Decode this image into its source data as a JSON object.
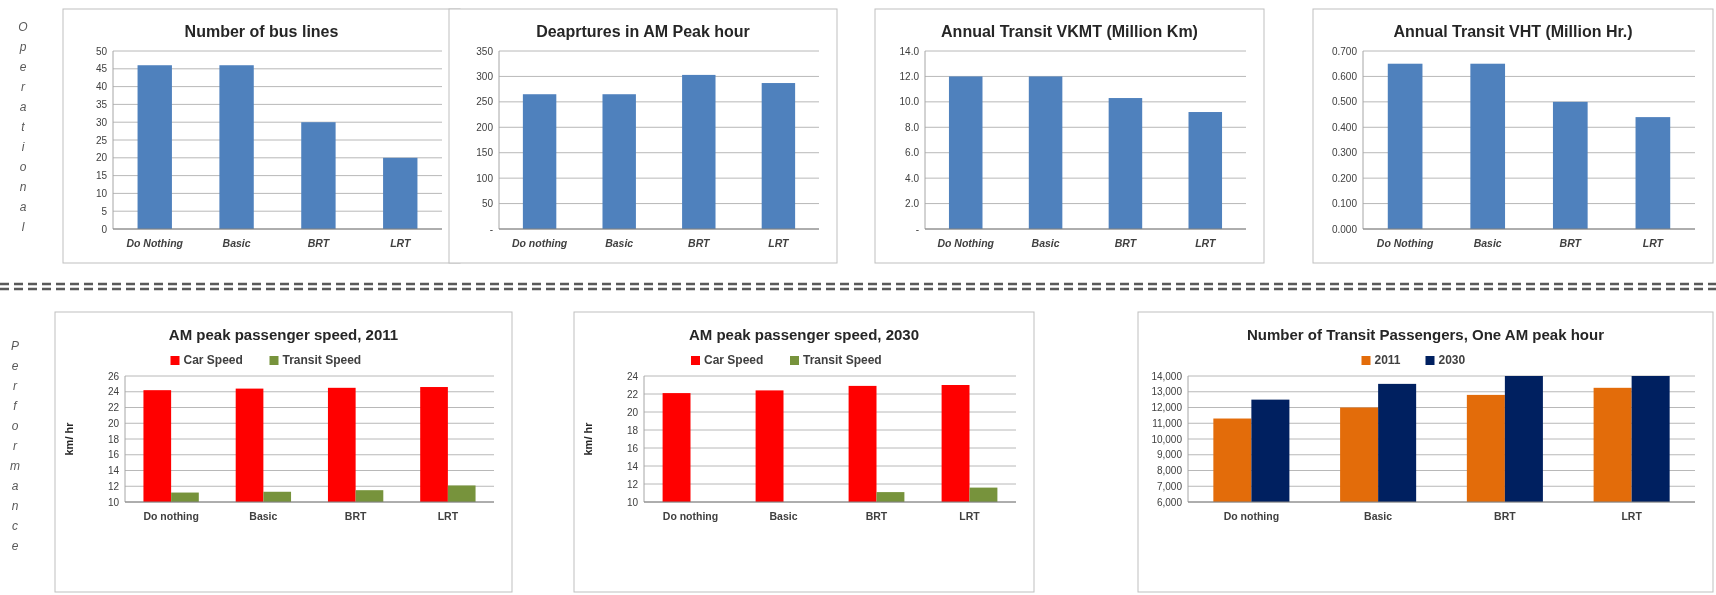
{
  "chart_data": [
    {
      "type": "bar",
      "title": "Number of bus lines",
      "categories": [
        "Do Nothing",
        "Basic",
        "BRT",
        "LRT"
      ],
      "values": [
        46,
        46,
        30,
        20
      ],
      "color": "#4f81bd",
      "ylim": [
        0,
        50
      ],
      "yticks": [
        0,
        5,
        10,
        15,
        20,
        25,
        30,
        35,
        40,
        45,
        50
      ],
      "grid": "y",
      "annotations": [
        "Operational"
      ]
    },
    {
      "type": "bar",
      "title": "Deaprtures  in AM Peak hour",
      "categories": [
        "Do nothing",
        "Basic",
        "BRT",
        "LRT"
      ],
      "values": [
        265,
        265,
        303,
        287
      ],
      "color": "#4f81bd",
      "ylim": [
        0,
        350
      ],
      "yticks": [
        {
          "value": 0,
          "label": "-"
        },
        50,
        100,
        150,
        200,
        250,
        300,
        350
      ],
      "grid": "y"
    },
    {
      "type": "bar",
      "title": "Annual Transit VKMT  (Million Km)",
      "categories": [
        "Do Nothing",
        "Basic",
        "BRT",
        "LRT"
      ],
      "values": [
        12.0,
        12.0,
        10.3,
        9.2
      ],
      "color": "#4f81bd",
      "ylim": [
        0,
        14
      ],
      "yticks": [
        {
          "value": 0,
          "label": "-"
        },
        {
          "value": 2,
          "label": "2.0"
        },
        {
          "value": 4,
          "label": "4.0"
        },
        {
          "value": 6,
          "label": "6.0"
        },
        {
          "value": 8,
          "label": "8.0"
        },
        {
          "value": 10,
          "label": "10.0"
        },
        {
          "value": 12,
          "label": "12.0"
        },
        {
          "value": 14,
          "label": "14.0"
        }
      ],
      "grid": "y"
    },
    {
      "type": "bar",
      "title": "Annual Transit VHT (Million Hr.)",
      "categories": [
        "Do Nothing",
        "Basic",
        "BRT",
        "LRT"
      ],
      "values": [
        0.65,
        0.65,
        0.5,
        0.44
      ],
      "color": "#4f81bd",
      "ylim": [
        0,
        0.7
      ],
      "yticks": [
        {
          "value": 0,
          "label": "0.000"
        },
        {
          "value": 0.1,
          "label": "0.100"
        },
        {
          "value": 0.2,
          "label": "0.200"
        },
        {
          "value": 0.3,
          "label": "0.300"
        },
        {
          "value": 0.4,
          "label": "0.400"
        },
        {
          "value": 0.5,
          "label": "0.500"
        },
        {
          "value": 0.6,
          "label": "0.600"
        },
        {
          "value": 0.7,
          "label": "0.700"
        }
      ],
      "grid": "y"
    },
    {
      "type": "bar",
      "title": "AM peak passenger speed, 2011",
      "categories": [
        "Do nothing",
        "Basic",
        "BRT",
        "LRT"
      ],
      "series": [
        {
          "name": "Car Speed",
          "color": "#ff0000",
          "values": [
            24.2,
            24.4,
            24.5,
            24.6
          ]
        },
        {
          "name": "Transit Speed",
          "color": "#77933c",
          "values": [
            11.2,
            11.3,
            11.5,
            12.1
          ]
        }
      ],
      "ylabel": "km/ hr",
      "ylim": [
        10,
        26
      ],
      "yticks": [
        10,
        12,
        14,
        16,
        18,
        20,
        22,
        24,
        26
      ],
      "grid": "y",
      "legend": "top",
      "annotations": [
        "Performance"
      ]
    },
    {
      "type": "bar",
      "title": "AM peak passenger speed, 2030",
      "categories": [
        "Do nothing",
        "Basic",
        "BRT",
        "LRT"
      ],
      "series": [
        {
          "name": "Car Speed",
          "color": "#ff0000",
          "values": [
            22.1,
            22.4,
            22.9,
            23.0
          ]
        },
        {
          "name": "Transit Speed",
          "color": "#77933c",
          "values": [
            null,
            null,
            11.1,
            11.6
          ]
        }
      ],
      "ylabel": "km/ hr",
      "ylim": [
        10,
        24
      ],
      "yticks": [
        10,
        12,
        14,
        16,
        18,
        20,
        22,
        24
      ],
      "grid": "y",
      "legend": "top"
    },
    {
      "type": "bar",
      "title": "Number of Transit  Passengers, One AM peak hour",
      "categories": [
        "Do nothing",
        "Basic",
        "BRT",
        "LRT"
      ],
      "series": [
        {
          "name": "2011",
          "color": "#e36c0a",
          "values": [
            11300,
            12000,
            12800,
            13250
          ]
        },
        {
          "name": "2030",
          "color": "#002060",
          "values": [
            12500,
            13500,
            14000,
            14000
          ]
        }
      ],
      "ylim": [
        6000,
        14000
      ],
      "yticks": [
        {
          "value": 6000,
          "label": "6,000"
        },
        {
          "value": 7000,
          "label": "7,000"
        },
        {
          "value": 8000,
          "label": "8,000"
        },
        {
          "value": 9000,
          "label": "9,000"
        },
        {
          "value": 10000,
          "label": "10,000"
        },
        {
          "value": 11000,
          "label": "11,000"
        },
        {
          "value": 12000,
          "label": "12,000"
        },
        {
          "value": 13000,
          "label": "13,000"
        },
        {
          "value": 14000,
          "label": "14,000"
        }
      ],
      "grid": "y",
      "legend": "top"
    }
  ]
}
